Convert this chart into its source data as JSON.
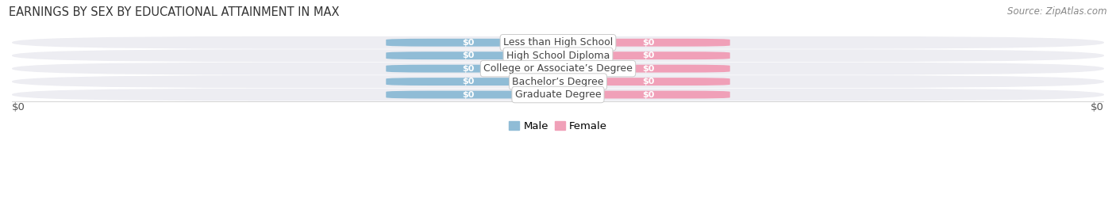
{
  "title": "EARNINGS BY SEX BY EDUCATIONAL ATTAINMENT IN MAX",
  "source": "Source: ZipAtlas.com",
  "categories": [
    "Less than High School",
    "High School Diploma",
    "College or Associate’s Degree",
    "Bachelor’s Degree",
    "Graduate Degree"
  ],
  "male_values_label": [
    "$0",
    "$0",
    "$0",
    "$0",
    "$0"
  ],
  "female_values_label": [
    "$0",
    "$0",
    "$0",
    "$0",
    "$0"
  ],
  "male_color": "#90bcd6",
  "female_color": "#f0a0b8",
  "male_label": "Male",
  "female_label": "Female",
  "bar_label_color": "#ffffff",
  "category_label_color": "#444444",
  "background_color": "#ffffff",
  "row_bg_color": "#ededf2",
  "row_gap_color": "#ffffff",
  "xlabel_left": "$0",
  "xlabel_right": "$0",
  "title_fontsize": 10.5,
  "source_fontsize": 8.5,
  "bar_label_fontsize": 8,
  "category_fontsize": 9,
  "axis_label_fontsize": 9.5,
  "legend_fontsize": 9.5,
  "bar_width": 0.3,
  "bar_height": 0.6
}
